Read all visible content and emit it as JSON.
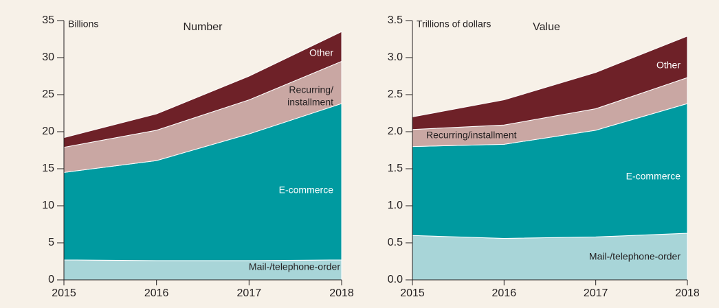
{
  "chart_data": [
    {
      "type": "stacked_area",
      "title": "Number",
      "y_label": "Billions",
      "categories": [
        "2015",
        "2016",
        "2017",
        "2018"
      ],
      "ylim": [
        0,
        35
      ],
      "yticks": [
        0,
        5,
        10,
        15,
        20,
        25,
        30,
        35
      ],
      "series": [
        {
          "name": "Mail-/telephone-order",
          "color": "#a8d5d8",
          "values": [
            2.7,
            2.6,
            2.6,
            2.7
          ]
        },
        {
          "name": "E-commerce",
          "color": "#009aa0",
          "values": [
            11.8,
            13.5,
            17.1,
            21.1
          ]
        },
        {
          "name": "Recurring/installment",
          "color": "#c9a7a3",
          "values": [
            3.4,
            4.1,
            4.6,
            5.7
          ]
        },
        {
          "name": "Other",
          "color": "#6e2128",
          "values": [
            1.3,
            2.2,
            3.2,
            4.0
          ]
        }
      ],
      "annotations": [
        [
          "Mail-/telephone-order"
        ],
        [
          "E-commerce"
        ],
        [
          "Recurring/",
          "installment"
        ],
        [
          "Other"
        ]
      ]
    },
    {
      "type": "stacked_area",
      "title": "Value",
      "y_label": "Trillions of dollars",
      "categories": [
        "2015",
        "2016",
        "2017",
        "2018"
      ],
      "ylim": [
        0,
        3.5
      ],
      "yticks": [
        {
          "value": 0,
          "label": "0.0"
        },
        0.5,
        {
          "value": 1,
          "label": "1.0"
        },
        1.5,
        {
          "value": 2,
          "label": "2.0"
        },
        2.5,
        {
          "value": 3,
          "label": "3.0"
        },
        3.5
      ],
      "series": [
        {
          "name": "Mail-/telephone-order",
          "color": "#a8d5d8",
          "values": [
            0.6,
            0.56,
            0.58,
            0.63
          ]
        },
        {
          "name": "E-commerce",
          "color": "#009aa0",
          "values": [
            1.2,
            1.27,
            1.44,
            1.75
          ]
        },
        {
          "name": "Recurring/installment",
          "color": "#c9a7a3",
          "values": [
            0.23,
            0.26,
            0.29,
            0.35
          ]
        },
        {
          "name": "Other",
          "color": "#6e2128",
          "values": [
            0.17,
            0.34,
            0.49,
            0.56
          ]
        }
      ],
      "annotations": [
        [
          "Mail-/telephone-order"
        ],
        [
          "E-commerce"
        ],
        [
          "Recurring/installment"
        ],
        [
          "Other"
        ]
      ]
    }
  ]
}
